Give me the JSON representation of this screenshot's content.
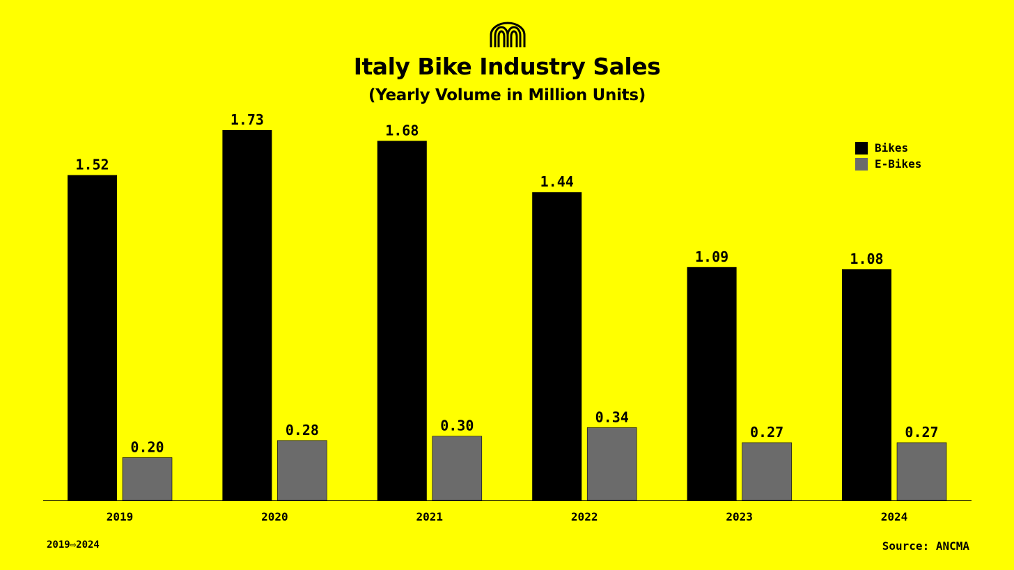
{
  "header": {
    "logo_icon": "arches-logo-icon",
    "title": "Italy Bike Industry Sales",
    "subtitle": "(Yearly Volume in Million Units)"
  },
  "legend": {
    "items": [
      {
        "label": "Bikes",
        "color": "#000000"
      },
      {
        "label": "E-Bikes",
        "color": "#6b6b6b"
      }
    ]
  },
  "footer": {
    "range_label": "2019⇨2024",
    "source": "Source: ANCMA"
  },
  "colors": {
    "background": "#ffff00",
    "bikes": "#000000",
    "ebikes": "#6b6b6b"
  },
  "chart_data": {
    "type": "bar",
    "title": "Italy Bike Industry Sales",
    "subtitle": "(Yearly Volume in Million Units)",
    "categories": [
      "2019",
      "2020",
      "2021",
      "2022",
      "2023",
      "2024"
    ],
    "series": [
      {
        "name": "Bikes",
        "values": [
          1.52,
          1.73,
          1.68,
          1.44,
          1.09,
          1.08
        ],
        "labels": [
          "1.52",
          "1.73",
          "1.68",
          "1.44",
          "1.09",
          "1.08"
        ]
      },
      {
        "name": "E-Bikes",
        "values": [
          0.2,
          0.28,
          0.3,
          0.34,
          0.27,
          0.27
        ],
        "labels": [
          "0.20",
          "0.28",
          "0.30",
          "0.34",
          "0.27",
          "0.27"
        ]
      }
    ],
    "ylim": [
      0,
      1.73
    ],
    "grid": false,
    "legend_position": "top-right"
  }
}
